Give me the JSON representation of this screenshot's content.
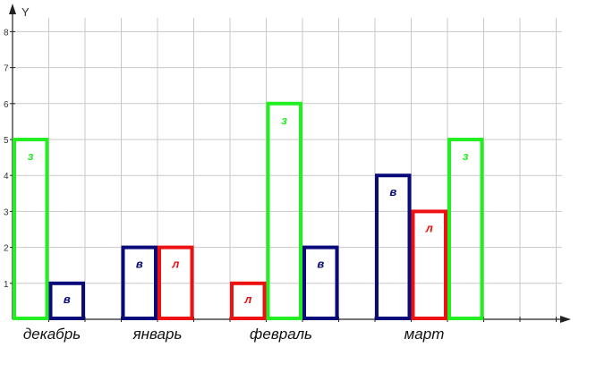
{
  "chart_data": {
    "type": "bar",
    "ylabel": "Y",
    "ylim": [
      0,
      8
    ],
    "yticks": [
      "1",
      "2",
      "3",
      "4",
      "5",
      "6",
      "7",
      "8"
    ],
    "grid": true,
    "categories": [
      "декабрь",
      "январь",
      "февраль",
      "март"
    ],
    "bars": [
      {
        "category": "декабрь",
        "label": "з",
        "value": 5,
        "color": "#22ee22"
      },
      {
        "category": "декабрь",
        "label": "в",
        "value": 1,
        "color": "#0a0a7a"
      },
      {
        "category": "январь",
        "label": "в",
        "value": 2,
        "color": "#0a0a7a"
      },
      {
        "category": "январь",
        "label": "л",
        "value": 2,
        "color": "#ee1111"
      },
      {
        "category": "февраль",
        "label": "л",
        "value": 1,
        "color": "#ee1111"
      },
      {
        "category": "февраль",
        "label": "з",
        "value": 6,
        "color": "#22ee22"
      },
      {
        "category": "февраль",
        "label": "в",
        "value": 2,
        "color": "#0a0a7a"
      },
      {
        "category": "март",
        "label": "в",
        "value": 4,
        "color": "#0a0a7a"
      },
      {
        "category": "март",
        "label": "л",
        "value": 3,
        "color": "#ee1111"
      },
      {
        "category": "март",
        "label": "з",
        "value": 5,
        "color": "#22ee22"
      }
    ]
  }
}
